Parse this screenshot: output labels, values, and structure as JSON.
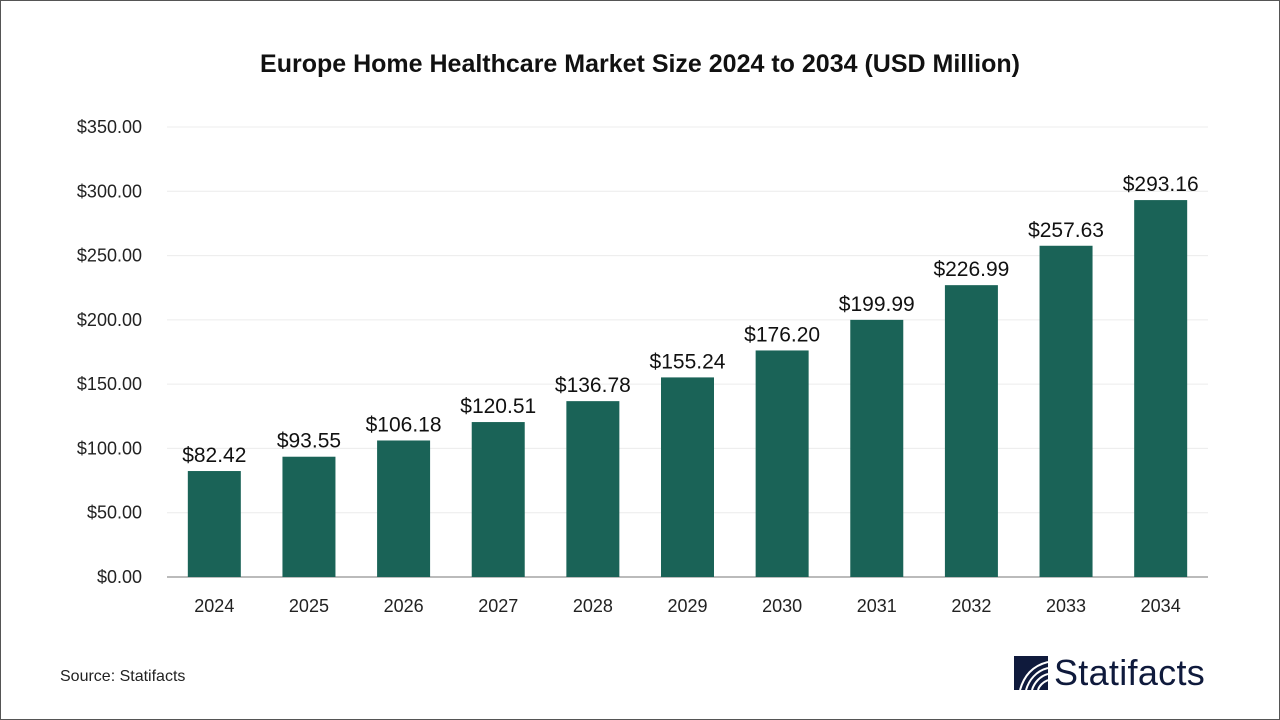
{
  "chart_data": {
    "type": "bar",
    "title": "Europe Home Healthcare Market Size 2024 to 2034 (USD Million)",
    "categories": [
      "2024",
      "2025",
      "2026",
      "2027",
      "2028",
      "2029",
      "2030",
      "2031",
      "2032",
      "2033",
      "2034"
    ],
    "values": [
      82.42,
      93.55,
      106.18,
      120.51,
      136.78,
      155.24,
      176.2,
      199.99,
      226.99,
      257.63,
      293.16
    ],
    "data_labels": [
      "$82.42",
      "$93.55",
      "$106.18",
      "$120.51",
      "$136.78",
      "$155.24",
      "$176.20",
      "$199.99",
      "$226.99",
      "$257.63",
      "$293.16"
    ],
    "yticks": [
      0,
      50,
      100,
      150,
      200,
      250,
      300,
      350
    ],
    "ytick_labels": [
      "$0.00",
      "$50.00",
      "$100.00",
      "$150.00",
      "$200.00",
      "$250.00",
      "$300.00",
      "$350.00"
    ],
    "ylim": [
      0,
      350
    ],
    "xlabel": "",
    "ylabel": "",
    "grid": true,
    "bar_color": "#1a6357"
  },
  "footer": {
    "source": "Source: Statifacts",
    "brand": "Statifacts",
    "brand_color": "#0f1a3c"
  }
}
